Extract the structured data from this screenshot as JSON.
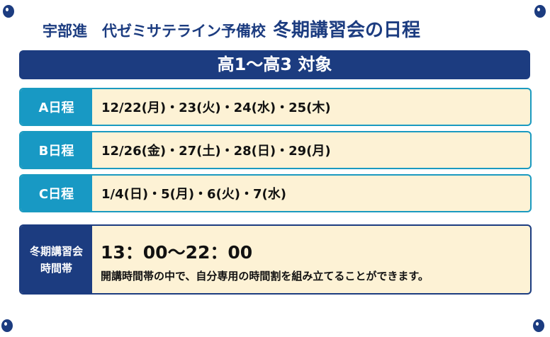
{
  "header": {
    "school": "宇部進　代ゼミサテライン予備校",
    "title": "冬期講習会の日程"
  },
  "target": "高1〜高3 対象",
  "schedules": [
    {
      "label": "A日程",
      "dates": "12/22(月)・23(火)・24(水)・25(木)"
    },
    {
      "label": "B日程",
      "dates": "12/26(金)・27(土)・28(日)・29(月)"
    },
    {
      "label": "C日程",
      "dates": "1/4(日)・5(月)・6(火)・7(水)"
    }
  ],
  "hours": {
    "label_line1": "冬期講習会",
    "label_line2": "時間帯",
    "time": "13：00〜22：00",
    "note": "開講時間帯の中で、自分専用の時間割を組み立てることができます。"
  },
  "colors": {
    "navy": "#1c3c80",
    "teal": "#1899c4",
    "cream": "#fdf2d5"
  }
}
